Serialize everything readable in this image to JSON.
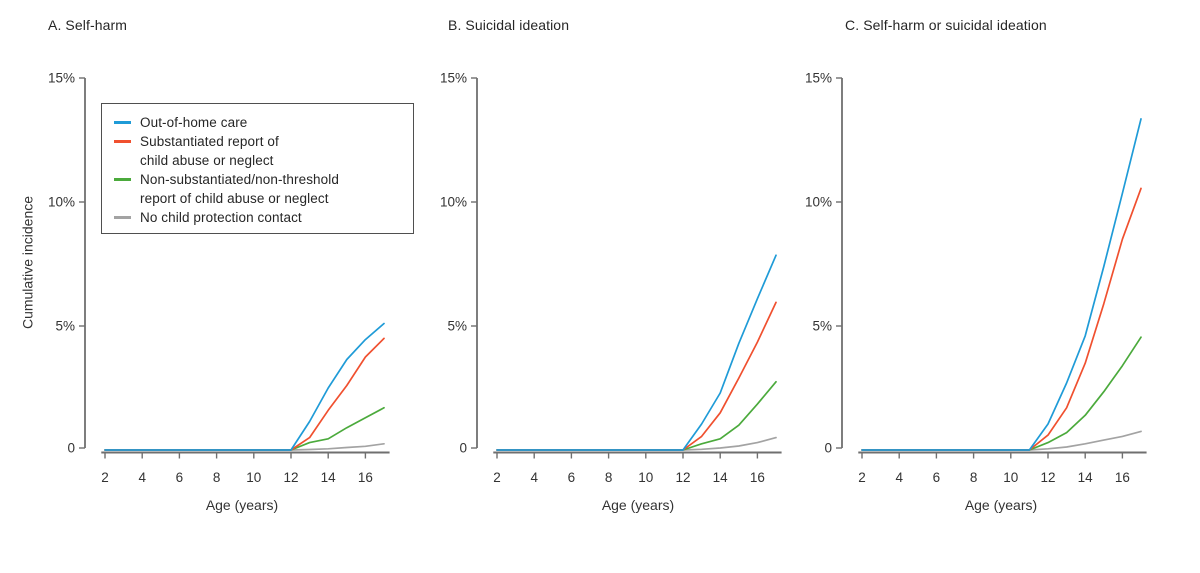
{
  "figure": {
    "background": "#ffffff"
  },
  "colors": {
    "axis": "#6f6f6f",
    "text": "#333333",
    "title": "#262626",
    "out_of_home_care": "#1f9bd7",
    "substantiated": "#f0502f",
    "non_substantiated": "#4baa3c",
    "no_contact": "#a3a3a3"
  },
  "legend": {
    "items": [
      {
        "key": "out_of_home_care",
        "color": "#1f9bd7",
        "lines": [
          "Out-of-home care"
        ]
      },
      {
        "key": "substantiated",
        "color": "#f0502f",
        "lines": [
          "Substantiated report of",
          "child abuse or neglect"
        ]
      },
      {
        "key": "non_substantiated",
        "color": "#4baa3c",
        "lines": [
          "Non-substantiated/non-threshold",
          "report of child abuse or neglect"
        ]
      },
      {
        "key": "no_contact",
        "color": "#a3a3a3",
        "lines": [
          "No child protection contact"
        ]
      }
    ]
  },
  "chart_data": [
    {
      "type": "line",
      "panel": "A",
      "title": "A. Self-harm",
      "xlabel": "Age (years)",
      "ylabel": "Cumulative incidence",
      "xlim": [
        1.8,
        17.3
      ],
      "ylim": [
        0,
        15
      ],
      "grid": false,
      "legend_position": "upper-left",
      "x_ticks": [
        2,
        4,
        6,
        8,
        10,
        12,
        14,
        16
      ],
      "y_ticks": [
        {
          "value": 0,
          "label": "0"
        },
        {
          "value": 5,
          "label": "5%"
        },
        {
          "value": 10,
          "label": "10%"
        },
        {
          "value": 15,
          "label": "15%"
        }
      ],
      "x": [
        2,
        3,
        4,
        5,
        6,
        7,
        8,
        9,
        10,
        11,
        12,
        13,
        14,
        15,
        16,
        17
      ],
      "series": [
        {
          "name": "Out-of-home care",
          "color": "#1f9bd7",
          "values": [
            0,
            0,
            0,
            0,
            0,
            0,
            0,
            0,
            0,
            0,
            0,
            1.15,
            2.5,
            3.65,
            4.45,
            5.1
          ]
        },
        {
          "name": "Substantiated report of child abuse or neglect",
          "color": "#f0502f",
          "values": [
            0,
            0,
            0,
            0,
            0,
            0,
            0,
            0,
            0,
            0,
            0,
            0.5,
            1.6,
            2.6,
            3.75,
            4.5
          ]
        },
        {
          "name": "Non-substantiated/non-threshold report of child abuse or neglect",
          "color": "#4baa3c",
          "values": [
            0,
            0,
            0,
            0,
            0,
            0,
            0,
            0,
            0,
            0,
            0,
            0.3,
            0.45,
            0.9,
            1.3,
            1.7
          ]
        },
        {
          "name": "No child protection contact",
          "color": "#a3a3a3",
          "values": [
            0,
            0,
            0,
            0,
            0,
            0,
            0,
            0,
            0,
            0,
            0,
            0.02,
            0.05,
            0.1,
            0.15,
            0.25
          ]
        }
      ]
    },
    {
      "type": "line",
      "panel": "B",
      "title": "B. Suicidal ideation",
      "xlabel": "Age (years)",
      "ylabel": "Cumulative incidence",
      "xlim": [
        1.8,
        17.3
      ],
      "ylim": [
        0,
        15
      ],
      "grid": false,
      "x_ticks": [
        2,
        4,
        6,
        8,
        10,
        12,
        14,
        16
      ],
      "y_ticks": [
        {
          "value": 0,
          "label": "0"
        },
        {
          "value": 5,
          "label": "5%"
        },
        {
          "value": 10,
          "label": "10%"
        },
        {
          "value": 15,
          "label": "15%"
        }
      ],
      "x": [
        2,
        3,
        4,
        5,
        6,
        7,
        8,
        9,
        10,
        11,
        12,
        13,
        14,
        15,
        16,
        17
      ],
      "series": [
        {
          "name": "Out-of-home care",
          "color": "#1f9bd7",
          "values": [
            0,
            0,
            0,
            0,
            0,
            0,
            0,
            0,
            0,
            0,
            0,
            1.05,
            2.3,
            4.3,
            6.1,
            7.85
          ]
        },
        {
          "name": "Substantiated report of child abuse or neglect",
          "color": "#f0502f",
          "values": [
            0,
            0,
            0,
            0,
            0,
            0,
            0,
            0,
            0,
            0,
            0,
            0.55,
            1.5,
            2.9,
            4.35,
            5.95
          ]
        },
        {
          "name": "Non-substantiated/non-threshold report of child abuse or neglect",
          "color": "#4baa3c",
          "values": [
            0,
            0,
            0,
            0,
            0,
            0,
            0,
            0,
            0,
            0,
            0,
            0.25,
            0.45,
            1.0,
            1.85,
            2.75
          ]
        },
        {
          "name": "No child protection contact",
          "color": "#a3a3a3",
          "values": [
            0,
            0,
            0,
            0,
            0,
            0,
            0,
            0,
            0,
            0,
            0,
            0.03,
            0.08,
            0.16,
            0.3,
            0.5
          ]
        }
      ]
    },
    {
      "type": "line",
      "panel": "C",
      "title": "C. Self-harm or suicidal ideation",
      "xlabel": "Age (years)",
      "ylabel": "Cumulative incidence",
      "xlim": [
        1.8,
        17.3
      ],
      "ylim": [
        0,
        15
      ],
      "grid": false,
      "x_ticks": [
        2,
        4,
        6,
        8,
        10,
        12,
        14,
        16
      ],
      "y_ticks": [
        {
          "value": 0,
          "label": "0"
        },
        {
          "value": 5,
          "label": "5%"
        },
        {
          "value": 10,
          "label": "10%"
        },
        {
          "value": 15,
          "label": "15%"
        }
      ],
      "x": [
        2,
        3,
        4,
        5,
        6,
        7,
        8,
        9,
        10,
        11,
        12,
        13,
        14,
        15,
        16,
        17
      ],
      "series": [
        {
          "name": "Out-of-home care",
          "color": "#1f9bd7",
          "values": [
            0,
            0,
            0,
            0,
            0,
            0,
            0,
            0,
            0,
            0,
            1.05,
            2.7,
            4.6,
            7.4,
            10.35,
            13.35
          ]
        },
        {
          "name": "Substantiated report of child abuse or neglect",
          "color": "#f0502f",
          "values": [
            0,
            0,
            0,
            0,
            0,
            0,
            0,
            0,
            0,
            0,
            0.6,
            1.7,
            3.5,
            5.9,
            8.5,
            10.55
          ]
        },
        {
          "name": "Non-substantiated/non-threshold report of child abuse or neglect",
          "color": "#4baa3c",
          "values": [
            0,
            0,
            0,
            0,
            0,
            0,
            0,
            0,
            0,
            0,
            0.3,
            0.7,
            1.4,
            2.35,
            3.4,
            4.55
          ]
        },
        {
          "name": "No child protection contact",
          "color": "#a3a3a3",
          "values": [
            0,
            0,
            0,
            0,
            0,
            0,
            0,
            0,
            0,
            0,
            0.05,
            0.12,
            0.25,
            0.4,
            0.55,
            0.75
          ]
        }
      ]
    }
  ]
}
